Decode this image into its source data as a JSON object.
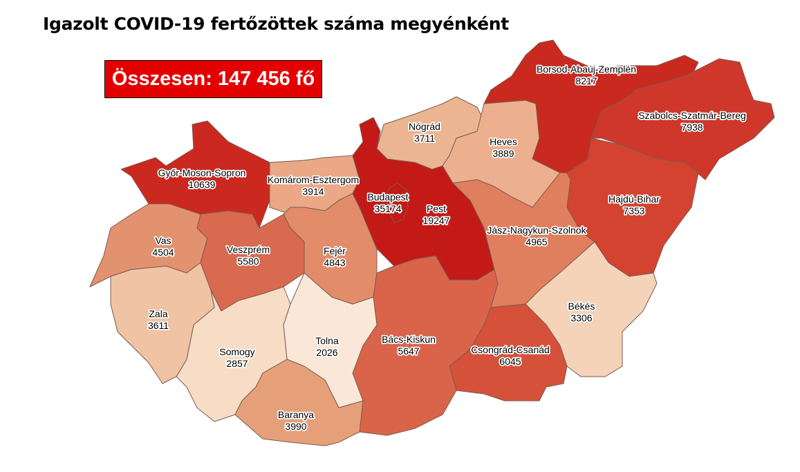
{
  "title": "Igazolt COVID-19 fertőzöttek száma megyénként",
  "total_label": "Összesen: 147 456 fő",
  "regions": [
    {
      "name": "Győr-Moson-Sopron",
      "value": "10639",
      "color": "#cb2820"
    },
    {
      "name": "Komárom-Esztergom",
      "value": "3914",
      "color": "#eaa886"
    },
    {
      "name": "Vas",
      "value": "4504",
      "color": "#e2926f"
    },
    {
      "name": "Veszprém",
      "value": "5580",
      "color": "#d96a4f"
    },
    {
      "name": "Fejér",
      "value": "4843",
      "color": "#e38c69"
    },
    {
      "name": "Pest",
      "value": "19247",
      "color": "#c41a17"
    },
    {
      "name": "Nógrád",
      "value": "3711",
      "color": "#ebb592"
    },
    {
      "name": "Heves",
      "value": "3889",
      "color": "#ecb08f"
    },
    {
      "name": "Borsod-Abaúj-Zemplén",
      "value": "8217",
      "color": "#c9291f"
    },
    {
      "name": "Szabolcs-Szatmár-Bereg",
      "value": "7938",
      "color": "#cf372a"
    },
    {
      "name": "Hajdú-Bihar",
      "value": "7353",
      "color": "#d4432f"
    },
    {
      "name": "Jász-Nagykun-Szolnok",
      "value": "4965",
      "color": "#e07f5e"
    },
    {
      "name": "Békés",
      "value": "3306",
      "color": "#f4d3b9"
    },
    {
      "name": "Csongrád-Csanád",
      "value": "6045",
      "color": "#d5513a"
    },
    {
      "name": "Bács-Kiskun",
      "value": "5647",
      "color": "#da6449"
    },
    {
      "name": "Tolna",
      "value": "2026",
      "color": "#fbe7d7"
    },
    {
      "name": "Somogy",
      "value": "2857",
      "color": "#f7dcc6"
    },
    {
      "name": "Zala",
      "value": "3611",
      "color": "#efc3a3"
    },
    {
      "name": "Baranya",
      "value": "3990",
      "color": "#e5a07a"
    },
    {
      "name": "Budapest",
      "value": "35174",
      "color": "#c41a17"
    }
  ]
}
